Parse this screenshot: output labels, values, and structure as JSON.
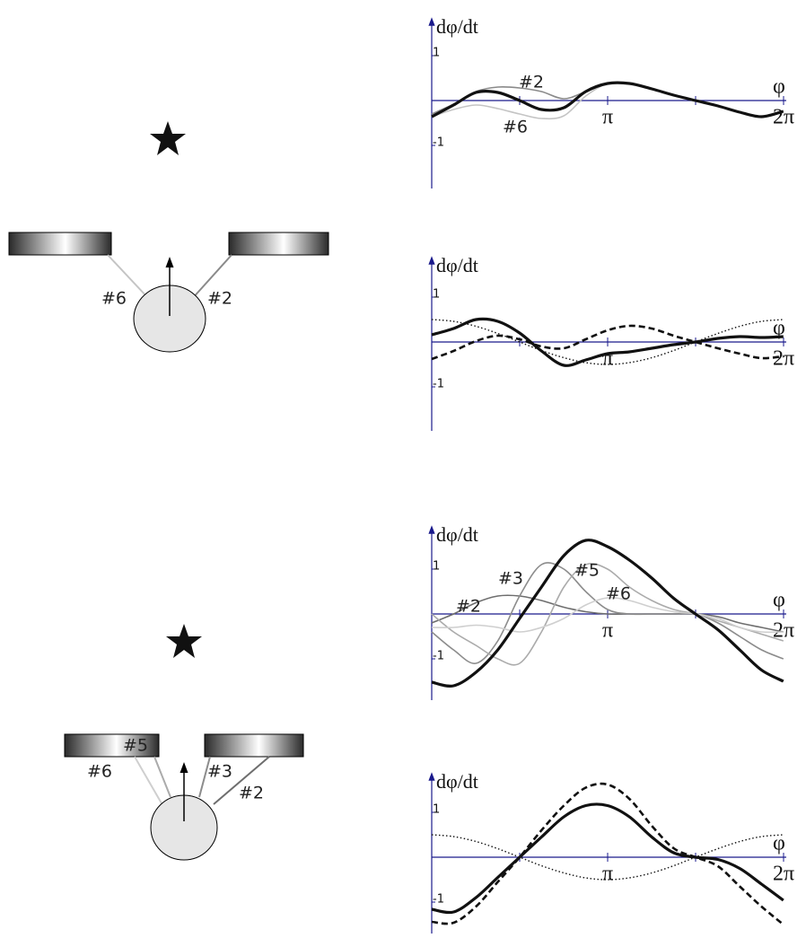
{
  "diagrams": [
    {
      "labels": [
        "#6",
        "#2"
      ]
    },
    {
      "labels": [
        "#6",
        "#5",
        "#3",
        "#2"
      ]
    }
  ],
  "chart_data": [
    {
      "type": "line",
      "y_label": "dφ/dt",
      "x_label": "φ",
      "x": [
        0,
        0.39,
        0.79,
        1.18,
        1.57,
        1.96,
        2.36,
        2.75,
        3.14,
        3.53,
        3.93,
        4.32,
        4.71,
        5.11,
        5.5,
        5.89,
        6.28
      ],
      "xlim": [
        0,
        6.2832
      ],
      "xticks": [
        {
          "value": 3.1416,
          "label": "π"
        },
        {
          "value": 6.2832,
          "label": "2π"
        }
      ],
      "xminorticks": [
        1.5708,
        4.7124
      ],
      "ylim": [
        -1.96,
        1.76
      ],
      "yticks": [
        1,
        -1
      ],
      "series": [
        {
          "name": "#2",
          "color": "#8a8a8a",
          "style": "thin",
          "values": [
            -0.3,
            -0.08,
            0.2,
            0.3,
            0.28,
            0.2,
            0.04,
            0.2,
            0.38,
            0.38,
            0.26,
            0.12,
            0,
            -0.12,
            -0.26,
            -0.36,
            -0.24
          ]
        },
        {
          "name": "#6",
          "color": "#c4c4c4",
          "style": "thin",
          "values": [
            -0.36,
            -0.2,
            -0.1,
            -0.18,
            -0.3,
            -0.4,
            -0.34,
            0.1,
            0.38,
            0.38,
            0.26,
            0.12,
            0,
            -0.12,
            -0.26,
            -0.36,
            -0.24
          ]
        },
        {
          "color": "#111111",
          "style": "thick",
          "values": [
            -0.36,
            -0.1,
            0.18,
            0.18,
            0.0,
            -0.2,
            -0.16,
            0.2,
            0.38,
            0.38,
            0.26,
            0.12,
            0.0,
            -0.12,
            -0.26,
            -0.36,
            -0.24
          ]
        }
      ]
    },
    {
      "type": "line",
      "y_label": "dφ/dt",
      "x_label": "φ",
      "x": [
        0,
        0.39,
        0.79,
        1.18,
        1.57,
        1.96,
        2.36,
        2.75,
        3.14,
        3.53,
        3.93,
        4.32,
        4.71,
        5.11,
        5.5,
        5.89,
        6.28
      ],
      "xlim": [
        0,
        6.2832
      ],
      "xticks": [
        {
          "value": 3.1416,
          "label": "π"
        },
        {
          "value": 6.2832,
          "label": "2π"
        }
      ],
      "xminorticks": [
        1.5708,
        4.7124
      ],
      "ylim": [
        -1.98,
        1.82
      ],
      "yticks": [
        1,
        -1
      ],
      "series": [
        {
          "color": "#111111",
          "style": "dotted",
          "values": [
            0.5,
            0.46,
            0.35,
            0.19,
            0,
            -0.19,
            -0.35,
            -0.46,
            -0.5,
            -0.46,
            -0.35,
            -0.19,
            0,
            0.19,
            0.35,
            0.46,
            0.5
          ]
        },
        {
          "color": "#111111",
          "style": "dashed",
          "values": [
            -0.38,
            -0.2,
            0.02,
            0.14,
            0.06,
            -0.1,
            -0.14,
            0.06,
            0.26,
            0.36,
            0.3,
            0.14,
            0.0,
            -0.14,
            -0.26,
            -0.36,
            -0.32
          ]
        },
        {
          "color": "#111111",
          "style": "thick",
          "values": [
            0.16,
            0.3,
            0.5,
            0.46,
            0.2,
            -0.2,
            -0.52,
            -0.4,
            -0.26,
            -0.22,
            -0.14,
            -0.06,
            0.0,
            0.08,
            0.12,
            0.1,
            0.12
          ]
        }
      ]
    },
    {
      "type": "line",
      "y_label": "dφ/dt",
      "x_label": "φ",
      "x": [
        0,
        0.39,
        0.79,
        1.18,
        1.57,
        1.96,
        2.36,
        2.75,
        3.14,
        3.53,
        3.93,
        4.32,
        4.71,
        5.11,
        5.5,
        5.89,
        6.28
      ],
      "xlim": [
        0,
        6.2832
      ],
      "xticks": [
        {
          "value": 3.1416,
          "label": "π"
        },
        {
          "value": 6.2832,
          "label": "2π"
        }
      ],
      "xminorticks": [
        1.5708,
        4.7124
      ],
      "ylim": [
        -1.92,
        1.88
      ],
      "yticks": [
        1,
        -1
      ],
      "series": [
        {
          "name": "#2",
          "color": "#6e6e6e",
          "style": "thin",
          "values": [
            -0.2,
            0.0,
            0.25,
            0.4,
            0.4,
            0.3,
            0.15,
            0.05,
            0,
            0,
            0,
            0,
            0,
            -0.06,
            -0.2,
            -0.3,
            -0.4
          ]
        },
        {
          "name": "#3",
          "color": "#8c8c8c",
          "style": "thin",
          "values": [
            -0.4,
            -0.8,
            -1.1,
            -0.6,
            0.4,
            1.1,
            1.0,
            0.5,
            0.1,
            0.0,
            0.0,
            0.0,
            0.0,
            -0.2,
            -0.5,
            -0.8,
            -1.0
          ]
        },
        {
          "name": "#5",
          "color": "#ababab",
          "style": "thin",
          "values": [
            0.0,
            -0.4,
            -0.7,
            -1.0,
            -1.1,
            -0.4,
            0.6,
            1.1,
            1.0,
            0.6,
            0.3,
            0.1,
            0.0,
            -0.15,
            -0.3,
            -0.45,
            -0.6
          ]
        },
        {
          "name": "#6",
          "color": "#cfcfcf",
          "style": "thin",
          "values": [
            -0.3,
            -0.3,
            -0.25,
            -0.3,
            -0.4,
            -0.3,
            -0.1,
            0.2,
            0.36,
            0.3,
            0.15,
            0.05,
            0,
            -0.1,
            -0.3,
            -0.4,
            -0.4
          ]
        },
        {
          "color": "#111111",
          "style": "thick",
          "values": [
            -1.52,
            -1.6,
            -1.3,
            -0.8,
            -0.1,
            0.6,
            1.3,
            1.64,
            1.5,
            1.2,
            0.8,
            0.35,
            0.0,
            -0.35,
            -0.8,
            -1.25,
            -1.5
          ]
        }
      ]
    },
    {
      "type": "line",
      "y_label": "dφ/dt",
      "x_label": "φ",
      "x": [
        0,
        0.39,
        0.79,
        1.18,
        1.57,
        1.96,
        2.36,
        2.75,
        3.14,
        3.53,
        3.93,
        4.32,
        4.71,
        5.11,
        5.5,
        5.89,
        6.28
      ],
      "xlim": [
        0,
        6.2832
      ],
      "xticks": [
        {
          "value": 3.1416,
          "label": "π"
        },
        {
          "value": 6.2832,
          "label": "2π"
        }
      ],
      "xminorticks": [
        1.5708,
        4.7124
      ],
      "ylim": [
        -1.7,
        1.8
      ],
      "yticks": [
        1,
        -1
      ],
      "series": [
        {
          "color": "#111111",
          "style": "dotted",
          "values": [
            0.5,
            0.46,
            0.35,
            0.19,
            0,
            -0.19,
            -0.35,
            -0.46,
            -0.5,
            -0.46,
            -0.35,
            -0.19,
            0,
            0.19,
            0.35,
            0.46,
            0.5
          ]
        },
        {
          "color": "#111111",
          "style": "dashed",
          "values": [
            -1.44,
            -1.46,
            -1.1,
            -0.55,
            0.0,
            0.6,
            1.15,
            1.55,
            1.62,
            1.3,
            0.7,
            0.2,
            0.0,
            -0.2,
            -0.65,
            -1.1,
            -1.5
          ]
        },
        {
          "color": "#111111",
          "style": "thick",
          "values": [
            -1.16,
            -1.22,
            -0.9,
            -0.45,
            0.0,
            0.45,
            0.9,
            1.15,
            1.15,
            0.9,
            0.45,
            0.1,
            0.0,
            -0.05,
            -0.25,
            -0.6,
            -0.96
          ]
        }
      ]
    }
  ]
}
